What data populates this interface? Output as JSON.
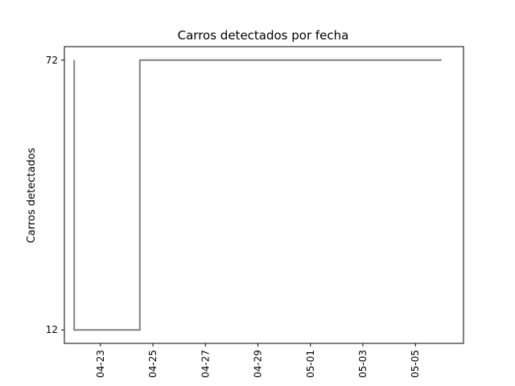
{
  "chart_data": {
    "type": "line",
    "title": "Carros detectados por fecha",
    "xlabel": "",
    "ylabel": "Carros detectados",
    "x_ticks": [
      "04-23",
      "04-25",
      "04-27",
      "04-29",
      "05-01",
      "05-03",
      "05-05"
    ],
    "y_ticks": [
      "12",
      "72"
    ],
    "xlim": [
      "2024-04-21T15:00",
      "2024-05-06T20:00"
    ],
    "ylim": [
      9,
      75
    ],
    "grid": false,
    "line_color": "#808080",
    "series": [
      {
        "x": [
          "2024-04-22T00:00",
          "2024-04-22T00:00",
          "2024-04-22T00:00",
          "2024-04-24T12:00",
          "2024-04-24T12:00",
          "2024-05-06T00:00"
        ],
        "y": [
          72,
          12,
          12,
          12,
          72,
          72
        ]
      }
    ]
  }
}
